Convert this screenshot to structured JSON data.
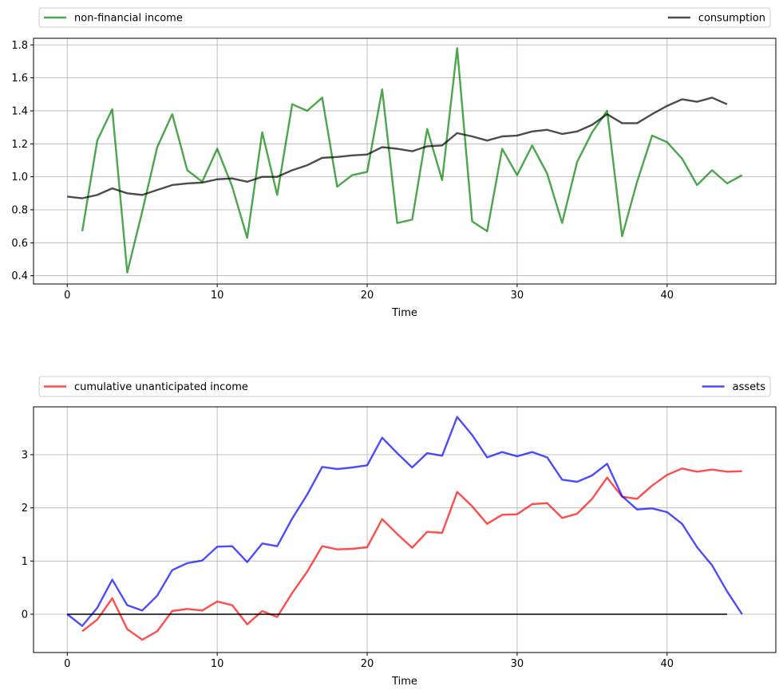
{
  "chart_data": [
    {
      "type": "line",
      "title": "",
      "xlabel": "Time",
      "ylabel": "",
      "xlim": [
        -2.25,
        47.25
      ],
      "ylim": [
        0.35,
        1.84
      ],
      "xticks": [
        0,
        10,
        20,
        30,
        40
      ],
      "yticks": [
        0.4,
        0.6,
        0.8,
        1.0,
        1.2,
        1.4,
        1.6,
        1.8
      ],
      "ytick_labels": [
        "0.4",
        "0.6",
        "0.8",
        "1.0",
        "1.2",
        "1.4",
        "1.6",
        "1.8"
      ],
      "grid": true,
      "legend_placement": "above plot, expanded across the top",
      "series": [
        {
          "name": "non-financial income",
          "color": "#008000",
          "x": [
            1,
            2,
            3,
            4,
            5,
            6,
            7,
            8,
            9,
            10,
            11,
            12,
            13,
            14,
            15,
            16,
            17,
            18,
            19,
            20,
            21,
            22,
            23,
            24,
            25,
            26,
            27,
            28,
            29,
            30,
            31,
            32,
            33,
            34,
            35,
            36,
            37,
            38,
            39,
            40,
            41,
            42,
            43,
            44,
            45
          ],
          "values": [
            0.67,
            1.22,
            1.41,
            0.42,
            0.79,
            1.18,
            1.38,
            1.04,
            0.97,
            1.17,
            0.94,
            0.63,
            1.27,
            0.89,
            1.44,
            1.4,
            1.48,
            0.94,
            1.01,
            1.03,
            1.53,
            0.72,
            0.74,
            1.29,
            0.98,
            1.78,
            0.73,
            0.67,
            1.17,
            1.01,
            1.19,
            1.02,
            0.72,
            1.09,
            1.27,
            1.4,
            0.64,
            0.97,
            1.25,
            1.21,
            1.11,
            0.95,
            1.04,
            0.96,
            1.01
          ]
        },
        {
          "name": "consumption",
          "color": "#000000",
          "x": [
            0,
            1,
            2,
            3,
            4,
            5,
            6,
            7,
            8,
            9,
            10,
            11,
            12,
            13,
            14,
            15,
            16,
            17,
            18,
            19,
            20,
            21,
            22,
            23,
            24,
            25,
            26,
            27,
            28,
            29,
            30,
            31,
            32,
            33,
            34,
            35,
            36,
            37,
            38,
            39,
            40,
            41,
            42,
            43,
            44
          ],
          "values": [
            0.88,
            0.87,
            0.89,
            0.93,
            0.9,
            0.89,
            0.92,
            0.95,
            0.96,
            0.965,
            0.985,
            0.99,
            0.97,
            1.0,
            1.0,
            1.04,
            1.07,
            1.115,
            1.12,
            1.13,
            1.135,
            1.18,
            1.17,
            1.155,
            1.185,
            1.19,
            1.265,
            1.245,
            1.22,
            1.245,
            1.25,
            1.275,
            1.285,
            1.26,
            1.275,
            1.315,
            1.38,
            1.325,
            1.325,
            1.38,
            1.43,
            1.47,
            1.455,
            1.48,
            1.44
          ]
        }
      ]
    },
    {
      "type": "line",
      "title": "",
      "xlabel": "Time",
      "ylabel": "",
      "xlim": [
        -2.25,
        47.25
      ],
      "ylim": [
        -0.72,
        3.9
      ],
      "xticks": [
        0,
        10,
        20,
        30,
        40
      ],
      "yticks": [
        0,
        1,
        2,
        3
      ],
      "ytick_labels": [
        "0",
        "1",
        "2",
        "3"
      ],
      "grid": true,
      "legend_placement": "above plot, expanded across the top",
      "series": [
        {
          "name": "cumulative unanticipated income",
          "color": "#ff0000",
          "x": [
            1,
            2,
            3,
            4,
            5,
            6,
            7,
            8,
            9,
            10,
            11,
            12,
            13,
            14,
            15,
            16,
            17,
            18,
            19,
            20,
            21,
            22,
            23,
            24,
            25,
            26,
            27,
            28,
            29,
            30,
            31,
            32,
            33,
            34,
            35,
            36,
            37,
            38,
            39,
            40,
            41,
            42,
            43,
            44,
            45
          ],
          "values": [
            -0.32,
            -0.1,
            0.3,
            -0.28,
            -0.48,
            -0.32,
            0.06,
            0.1,
            0.07,
            0.24,
            0.17,
            -0.19,
            0.06,
            -0.05,
            0.4,
            0.8,
            1.28,
            1.22,
            1.23,
            1.26,
            1.79,
            1.51,
            1.25,
            1.55,
            1.53,
            2.3,
            2.03,
            1.7,
            1.87,
            1.88,
            2.07,
            2.09,
            1.81,
            1.89,
            2.17,
            2.57,
            2.21,
            2.17,
            2.42,
            2.62,
            2.74,
            2.68,
            2.72,
            2.68,
            2.69
          ]
        },
        {
          "name": "assets",
          "color": "#0000ff",
          "x": [
            0,
            1,
            2,
            3,
            4,
            5,
            6,
            7,
            8,
            9,
            10,
            11,
            12,
            13,
            14,
            15,
            16,
            17,
            18,
            19,
            20,
            21,
            22,
            23,
            24,
            25,
            26,
            27,
            28,
            29,
            30,
            31,
            32,
            33,
            34,
            35,
            36,
            37,
            38,
            39,
            40,
            41,
            42,
            43,
            44,
            45
          ],
          "values": [
            0,
            -0.22,
            0.12,
            0.65,
            0.17,
            0.07,
            0.35,
            0.83,
            0.96,
            1.01,
            1.27,
            1.28,
            0.98,
            1.33,
            1.28,
            1.8,
            2.25,
            2.77,
            2.73,
            2.76,
            2.8,
            3.32,
            3.03,
            2.76,
            3.03,
            2.98,
            3.71,
            3.37,
            2.95,
            3.05,
            2.97,
            3.05,
            2.95,
            2.53,
            2.49,
            2.61,
            2.83,
            2.22,
            1.97,
            1.99,
            1.92,
            1.7,
            1.26,
            0.92,
            0.43,
            0.0
          ]
        },
        {
          "name": "",
          "color": "#000000",
          "x": [
            0,
            44
          ],
          "values": [
            0,
            0
          ]
        }
      ]
    }
  ]
}
